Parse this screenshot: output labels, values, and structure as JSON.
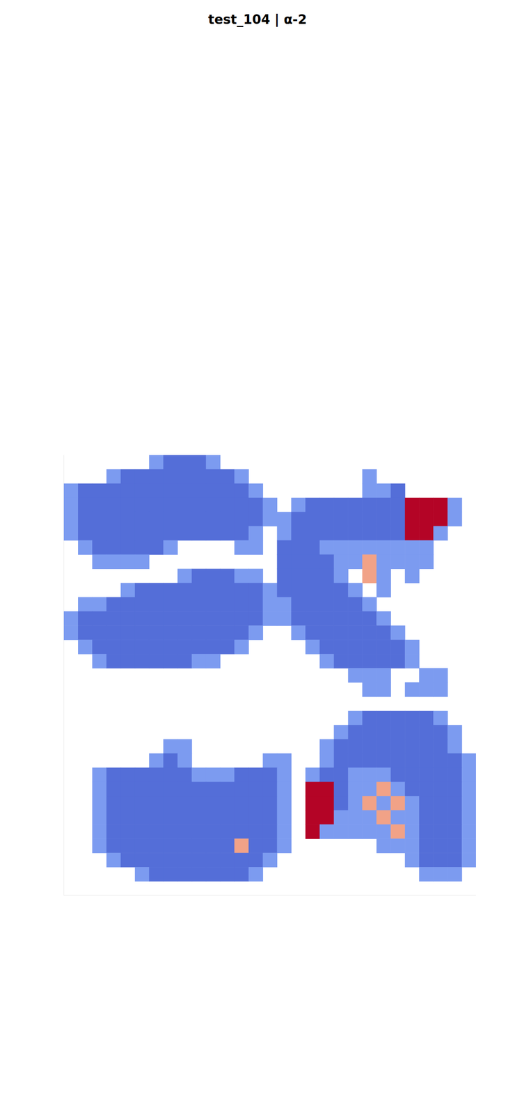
{
  "chart_data": {
    "type": "heatmap",
    "title": "test_104 | α-2",
    "grid": false,
    "tick_labels": false,
    "xlim": [
      90,
      670
    ],
    "ylim": [
      0,
      620
    ],
    "zlim": [
      0,
      1
    ],
    "x": [
      100,
      120,
      140,
      160,
      180,
      200,
      220,
      240,
      260,
      280,
      300,
      320,
      340,
      360,
      380,
      400,
      420,
      440,
      460,
      480,
      500,
      520,
      540,
      560,
      580,
      600,
      620,
      640,
      660
    ],
    "y": [
      610,
      590,
      570,
      550,
      530,
      510,
      490,
      470,
      450,
      430,
      410,
      390,
      370,
      350,
      330,
      310,
      290,
      270,
      250,
      230,
      210,
      190,
      170,
      150,
      130,
      110,
      90,
      70,
      50,
      30
    ],
    "z": [
      [
        null,
        null,
        null,
        null,
        null,
        null,
        0.28,
        0.12,
        0.12,
        0.12,
        0.28,
        null,
        null,
        null,
        null,
        null,
        null,
        null,
        null,
        null,
        null,
        null,
        null,
        null,
        null,
        null,
        null,
        null,
        null
      ],
      [
        null,
        null,
        null,
        0.28,
        0.12,
        0.12,
        0.12,
        0.12,
        0.12,
        0.12,
        0.12,
        0.12,
        0.28,
        null,
        null,
        null,
        null,
        null,
        null,
        null,
        null,
        0.28,
        null,
        null,
        null,
        null,
        null,
        null,
        null
      ],
      [
        0.28,
        0.12,
        0.12,
        0.12,
        0.12,
        0.12,
        0.12,
        0.12,
        0.12,
        0.12,
        0.12,
        0.12,
        0.12,
        0.28,
        null,
        null,
        null,
        null,
        null,
        null,
        null,
        0.28,
        0.28,
        0.12,
        null,
        null,
        null,
        null,
        null
      ],
      [
        0.28,
        0.12,
        0.12,
        0.12,
        0.12,
        0.12,
        0.12,
        0.12,
        0.12,
        0.12,
        0.12,
        0.12,
        0.12,
        0.12,
        0.28,
        null,
        0.28,
        0.12,
        0.12,
        0.12,
        0.12,
        0.12,
        0.12,
        0.12,
        1,
        1,
        1,
        0.28,
        null
      ],
      [
        0.28,
        0.12,
        0.12,
        0.12,
        0.12,
        0.12,
        0.12,
        0.12,
        0.12,
        0.12,
        0.12,
        0.12,
        0.12,
        0.12,
        0.28,
        0.28,
        0.12,
        0.12,
        0.12,
        0.12,
        0.12,
        0.12,
        0.12,
        0.12,
        1,
        1,
        1,
        0.28,
        null
      ],
      [
        0.28,
        0.12,
        0.12,
        0.12,
        0.12,
        0.12,
        0.12,
        0.12,
        0.12,
        0.12,
        0.12,
        0.12,
        0.12,
        0.28,
        null,
        0.28,
        0.12,
        0.12,
        0.12,
        0.12,
        0.12,
        0.12,
        0.12,
        0.12,
        1,
        1,
        0.28,
        null,
        null
      ],
      [
        null,
        0.28,
        0.12,
        0.12,
        0.12,
        0.12,
        0.12,
        0.28,
        null,
        null,
        null,
        null,
        0.28,
        0.28,
        null,
        0.12,
        0.12,
        0.12,
        0.28,
        0.28,
        0.28,
        0.28,
        0.28,
        0.28,
        0.28,
        0.28,
        null,
        null,
        null
      ],
      [
        null,
        null,
        0.28,
        0.28,
        0.28,
        0.28,
        null,
        null,
        null,
        null,
        null,
        null,
        null,
        null,
        null,
        0.12,
        0.12,
        0.12,
        0.12,
        0.28,
        0.28,
        0.72,
        0.28,
        0.28,
        0.28,
        0.28,
        null,
        null,
        null
      ],
      [
        null,
        null,
        null,
        null,
        null,
        null,
        null,
        null,
        0.28,
        0.12,
        0.12,
        0.12,
        0.28,
        0.28,
        null,
        0.12,
        0.12,
        0.12,
        0.12,
        0.28,
        null,
        0.72,
        0.28,
        null,
        0.28,
        null,
        null,
        null,
        null
      ],
      [
        null,
        null,
        null,
        null,
        0.28,
        0.12,
        0.12,
        0.12,
        0.12,
        0.12,
        0.12,
        0.12,
        0.12,
        0.12,
        0.28,
        0.12,
        0.12,
        0.12,
        0.12,
        0.12,
        0.28,
        null,
        0.28,
        null,
        null,
        null,
        null,
        null,
        null
      ],
      [
        null,
        0.28,
        0.28,
        0.12,
        0.12,
        0.12,
        0.12,
        0.12,
        0.12,
        0.12,
        0.12,
        0.12,
        0.12,
        0.12,
        0.28,
        0.28,
        0.12,
        0.12,
        0.12,
        0.12,
        0.12,
        0.28,
        null,
        null,
        null,
        null,
        null,
        null,
        null
      ],
      [
        0.28,
        0.12,
        0.12,
        0.12,
        0.12,
        0.12,
        0.12,
        0.12,
        0.12,
        0.12,
        0.12,
        0.12,
        0.12,
        0.12,
        0.28,
        0.28,
        0.12,
        0.12,
        0.12,
        0.12,
        0.12,
        0.12,
        0.28,
        null,
        null,
        null,
        null,
        null,
        null
      ],
      [
        0.28,
        0.12,
        0.12,
        0.12,
        0.12,
        0.12,
        0.12,
        0.12,
        0.12,
        0.12,
        0.12,
        0.12,
        0.12,
        0.28,
        null,
        null,
        0.28,
        0.12,
        0.12,
        0.12,
        0.12,
        0.12,
        0.12,
        0.28,
        null,
        null,
        null,
        null,
        null
      ],
      [
        null,
        0.28,
        0.12,
        0.12,
        0.12,
        0.12,
        0.12,
        0.12,
        0.12,
        0.12,
        0.12,
        0.12,
        0.28,
        null,
        null,
        null,
        null,
        0.28,
        0.12,
        0.12,
        0.12,
        0.12,
        0.12,
        0.12,
        0.28,
        null,
        null,
        null,
        null
      ],
      [
        null,
        null,
        0.28,
        0.12,
        0.12,
        0.12,
        0.12,
        0.12,
        0.12,
        0.28,
        0.28,
        null,
        null,
        null,
        null,
        null,
        null,
        null,
        0.28,
        0.12,
        0.12,
        0.12,
        0.12,
        0.12,
        0.28,
        null,
        null,
        null,
        null
      ],
      [
        null,
        null,
        null,
        null,
        null,
        null,
        null,
        null,
        null,
        null,
        null,
        null,
        null,
        null,
        null,
        null,
        null,
        null,
        null,
        null,
        0.28,
        0.28,
        0.28,
        null,
        null,
        0.28,
        0.28,
        null,
        null
      ],
      [
        null,
        null,
        null,
        null,
        null,
        null,
        null,
        null,
        null,
        null,
        null,
        null,
        null,
        null,
        null,
        null,
        null,
        null,
        null,
        null,
        null,
        0.28,
        0.28,
        null,
        0.28,
        0.28,
        0.28,
        null,
        null
      ],
      [
        null,
        null,
        null,
        null,
        null,
        null,
        null,
        null,
        null,
        null,
        null,
        null,
        null,
        null,
        null,
        null,
        null,
        null,
        null,
        null,
        null,
        null,
        null,
        null,
        null,
        null,
        null,
        null,
        null
      ],
      [
        null,
        null,
        null,
        null,
        null,
        null,
        null,
        null,
        null,
        null,
        null,
        null,
        null,
        null,
        null,
        null,
        null,
        null,
        null,
        null,
        0.28,
        0.12,
        0.12,
        0.12,
        0.12,
        0.12,
        0.28,
        null,
        null
      ],
      [
        null,
        null,
        null,
        null,
        null,
        null,
        null,
        null,
        null,
        null,
        null,
        null,
        null,
        null,
        null,
        null,
        null,
        null,
        null,
        0.28,
        0.12,
        0.12,
        0.12,
        0.12,
        0.12,
        0.12,
        0.12,
        0.28,
        null
      ],
      [
        null,
        null,
        null,
        null,
        null,
        null,
        null,
        0.28,
        0.28,
        null,
        null,
        null,
        null,
        null,
        null,
        null,
        null,
        null,
        0.28,
        0.12,
        0.12,
        0.12,
        0.12,
        0.12,
        0.12,
        0.12,
        0.12,
        0.28,
        null
      ],
      [
        null,
        null,
        null,
        null,
        null,
        null,
        0.28,
        0.12,
        0.28,
        null,
        null,
        null,
        null,
        null,
        0.28,
        0.28,
        null,
        null,
        0.28,
        0.12,
        0.12,
        0.12,
        0.12,
        0.12,
        0.12,
        0.12,
        0.12,
        0.12,
        0.28
      ],
      [
        null,
        null,
        0.28,
        0.12,
        0.12,
        0.12,
        0.12,
        0.12,
        0.12,
        0.28,
        0.28,
        0.28,
        0.12,
        0.12,
        0.12,
        0.28,
        null,
        0.28,
        0.12,
        0.12,
        0.28,
        0.28,
        0.28,
        0.12,
        0.12,
        0.12,
        0.12,
        0.12,
        0.28
      ],
      [
        null,
        null,
        0.28,
        0.12,
        0.12,
        0.12,
        0.12,
        0.12,
        0.12,
        0.12,
        0.12,
        0.12,
        0.12,
        0.12,
        0.12,
        0.28,
        null,
        1,
        1,
        0.12,
        0.28,
        0.28,
        0.72,
        0.28,
        0.12,
        0.12,
        0.12,
        0.12,
        0.28
      ],
      [
        null,
        null,
        0.28,
        0.12,
        0.12,
        0.12,
        0.12,
        0.12,
        0.12,
        0.12,
        0.12,
        0.12,
        0.12,
        0.12,
        0.12,
        0.28,
        null,
        1,
        1,
        0.12,
        0.28,
        0.72,
        0.28,
        0.72,
        0.28,
        0.12,
        0.12,
        0.12,
        0.28
      ],
      [
        null,
        null,
        0.28,
        0.12,
        0.12,
        0.12,
        0.12,
        0.12,
        0.12,
        0.12,
        0.12,
        0.12,
        0.12,
        0.12,
        0.12,
        0.28,
        null,
        1,
        1,
        0.28,
        0.28,
        0.28,
        0.72,
        0.28,
        0.28,
        0.12,
        0.12,
        0.12,
        0.28
      ],
      [
        null,
        null,
        0.28,
        0.12,
        0.12,
        0.12,
        0.12,
        0.12,
        0.12,
        0.12,
        0.12,
        0.12,
        0.12,
        0.12,
        0.12,
        0.28,
        null,
        1,
        0.28,
        0.28,
        0.28,
        0.28,
        0.28,
        0.72,
        0.28,
        0.12,
        0.12,
        0.12,
        0.28
      ],
      [
        null,
        null,
        0.28,
        0.12,
        0.12,
        0.12,
        0.12,
        0.12,
        0.12,
        0.12,
        0.12,
        0.12,
        0.72,
        0.12,
        0.12,
        0.28,
        null,
        null,
        null,
        null,
        null,
        null,
        0.28,
        0.28,
        0.28,
        0.12,
        0.12,
        0.12,
        0.28
      ],
      [
        null,
        null,
        null,
        0.28,
        0.12,
        0.12,
        0.12,
        0.12,
        0.12,
        0.12,
        0.12,
        0.12,
        0.12,
        0.12,
        0.28,
        null,
        null,
        null,
        null,
        null,
        null,
        null,
        null,
        null,
        0.28,
        0.12,
        0.12,
        0.12,
        0.28
      ],
      [
        null,
        null,
        null,
        null,
        null,
        0.28,
        0.12,
        0.12,
        0.12,
        0.12,
        0.12,
        0.12,
        0.12,
        0.28,
        null,
        null,
        null,
        null,
        null,
        null,
        null,
        null,
        null,
        null,
        null,
        0.28,
        0.28,
        0.28,
        null
      ]
    ]
  }
}
